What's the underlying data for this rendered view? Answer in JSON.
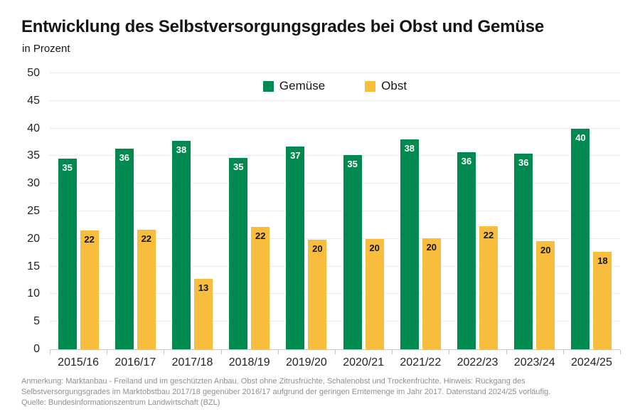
{
  "title": "Entwicklung des Selbstversorgungsgrades bei Obst und Gemüse",
  "subtitle": "in Prozent",
  "colors": {
    "gemuese_green": "#008a50",
    "obst_yellow": "#f8bd3c",
    "gridline": "#dedede",
    "axis_line": "#c6c6c6",
    "text_dark": "#161615",
    "footnote_gray": "#8f8f8f"
  },
  "chart_data": {
    "type": "bar",
    "title": "Entwicklung des Selbstversorgungsgrades bei Obst und Gemüse",
    "subtitle_unit": "in Prozent",
    "categories": [
      "2015/16",
      "2016/17",
      "2017/18",
      "2018/19",
      "2019/20",
      "2020/21",
      "2021/22",
      "2022/23",
      "2023/24",
      "2024/25"
    ],
    "series": [
      {
        "name": "Gemüse",
        "color": "#008a50",
        "label_color": "#ffffff",
        "values": [
          35,
          36,
          38,
          35,
          37,
          35,
          38,
          36,
          36,
          40
        ],
        "visual_values": [
          34.6,
          36.3,
          37.8,
          34.7,
          36.7,
          35.2,
          38.0,
          35.7,
          35.5,
          40.0
        ]
      },
      {
        "name": "Obst",
        "color": "#f8bd3c",
        "label_color": "#161615",
        "values": [
          22,
          22,
          13,
          22,
          20,
          20,
          20,
          22,
          20,
          18
        ],
        "visual_values": [
          21.5,
          21.6,
          12.8,
          22.2,
          19.8,
          20.0,
          20.1,
          22.3,
          19.6,
          17.7
        ]
      }
    ],
    "xlabel": "",
    "ylabel": "in Prozent",
    "ylim": [
      0,
      50
    ],
    "ytick_step": 5,
    "grid": "horizontal-dotted",
    "legend_position": "top-center",
    "value_labels": "inside-top"
  },
  "footnotes": {
    "note_line1": "Anmerkung: Marktanbau - Freiland und im geschützten Anbau. Obst ohne Zitrusfrüchte, Schalenobst und Trockenfrüchte. Hinweis: Rückgang des",
    "note_line2": "Selbstversorgungsgrades im Marktobstbau 2017/18 gegenüber 2016/17 aufgrund der geringen Erntemenge im Jahr 2017. Datenstand 2024/25 vorläufig.",
    "source": "Quelle: Bundesinformationszentrum Landwirtschaft (BZL)"
  }
}
